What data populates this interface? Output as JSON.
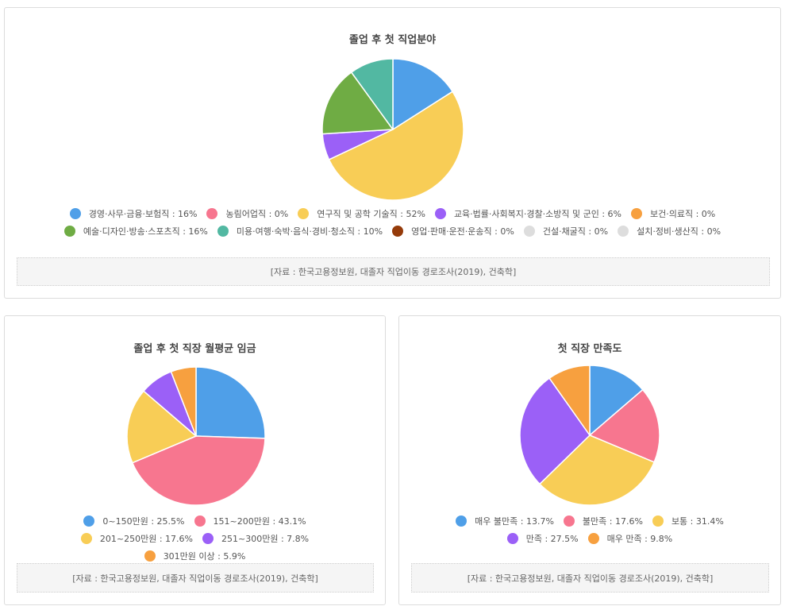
{
  "chart_data": [
    {
      "type": "pie",
      "title": "졸업 후 첫 직업분야",
      "slices": [
        {
          "label": "경영·사무·금융·보험직",
          "value": 16,
          "display": "16%",
          "color": "#4f9fe8"
        },
        {
          "label": "농림어업직",
          "value": 0,
          "display": "0%",
          "color": "#f7768f"
        },
        {
          "label": "연구직 및 공학 기술직",
          "value": 52,
          "display": "52%",
          "color": "#f8cd56"
        },
        {
          "label": "교육·법률·사회복지·경찰·소방직 및 군인",
          "value": 6,
          "display": "6%",
          "color": "#9b60f7"
        },
        {
          "label": "보건·의료직",
          "value": 0,
          "display": "0%",
          "color": "#f7a03f"
        },
        {
          "label": "예술·디자인·방송·스포츠직",
          "value": 16,
          "display": "16%",
          "color": "#6fac44"
        },
        {
          "label": "미용·여행·숙박·음식·경비·청소직",
          "value": 10,
          "display": "10%",
          "color": "#52b8a2"
        },
        {
          "label": "영업·판매·운전·운송직",
          "value": 0,
          "display": "0%",
          "color": "#953b0a"
        },
        {
          "label": "건설·채굴직",
          "value": 0,
          "display": "0%",
          "color": "#dddddd"
        },
        {
          "label": "설치·정비·생산직",
          "value": 0,
          "display": "0%",
          "color": "#dddddd"
        }
      ],
      "source": "[자료 : 한국고용정보원, 대졸자 직업이동 경로조사(2019), 건축학]"
    },
    {
      "type": "pie",
      "title": "졸업 후 첫 직장 월평균 임금",
      "slices": [
        {
          "label": "0~150만원",
          "value": 25.5,
          "display": "25.5%",
          "color": "#4f9fe8"
        },
        {
          "label": "151~200만원",
          "value": 43.1,
          "display": "43.1%",
          "color": "#f7768f"
        },
        {
          "label": "201~250만원",
          "value": 17.6,
          "display": "17.6%",
          "color": "#f8cd56"
        },
        {
          "label": "251~300만원",
          "value": 7.8,
          "display": "7.8%",
          "color": "#9b60f7"
        },
        {
          "label": "301만원 이상",
          "value": 5.9,
          "display": "5.9%",
          "color": "#f7a03f"
        }
      ],
      "source": "[자료 : 한국고용정보원, 대졸자 직업이동 경로조사(2019), 건축학]"
    },
    {
      "type": "pie",
      "title": "첫 직장 만족도",
      "slices": [
        {
          "label": "매우 불만족",
          "value": 13.7,
          "display": "13.7%",
          "color": "#4f9fe8"
        },
        {
          "label": "불만족",
          "value": 17.6,
          "display": "17.6%",
          "color": "#f7768f"
        },
        {
          "label": "보통",
          "value": 31.4,
          "display": "31.4%",
          "color": "#f8cd56"
        },
        {
          "label": "만족",
          "value": 27.5,
          "display": "27.5%",
          "color": "#9b60f7"
        },
        {
          "label": "매우 만족",
          "value": 9.8,
          "display": "9.8%",
          "color": "#f7a03f"
        }
      ],
      "source": "[자료 : 한국고용정보원, 대졸자 직업이동 경로조사(2019), 건축학]"
    }
  ]
}
